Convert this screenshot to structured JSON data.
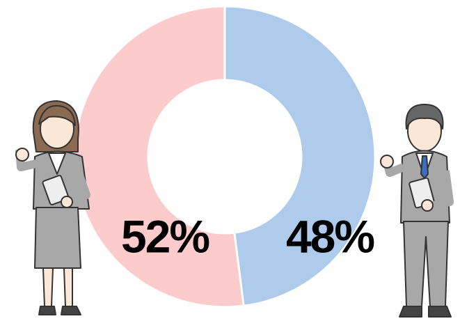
{
  "chart_data": {
    "type": "pie",
    "categories": [
      null,
      null
    ],
    "values": [
      48,
      52
    ],
    "value_labels": [
      "48%",
      "52%"
    ],
    "colors": [
      "#aecbeb",
      "#fccccd"
    ],
    "donut": true
  }
}
